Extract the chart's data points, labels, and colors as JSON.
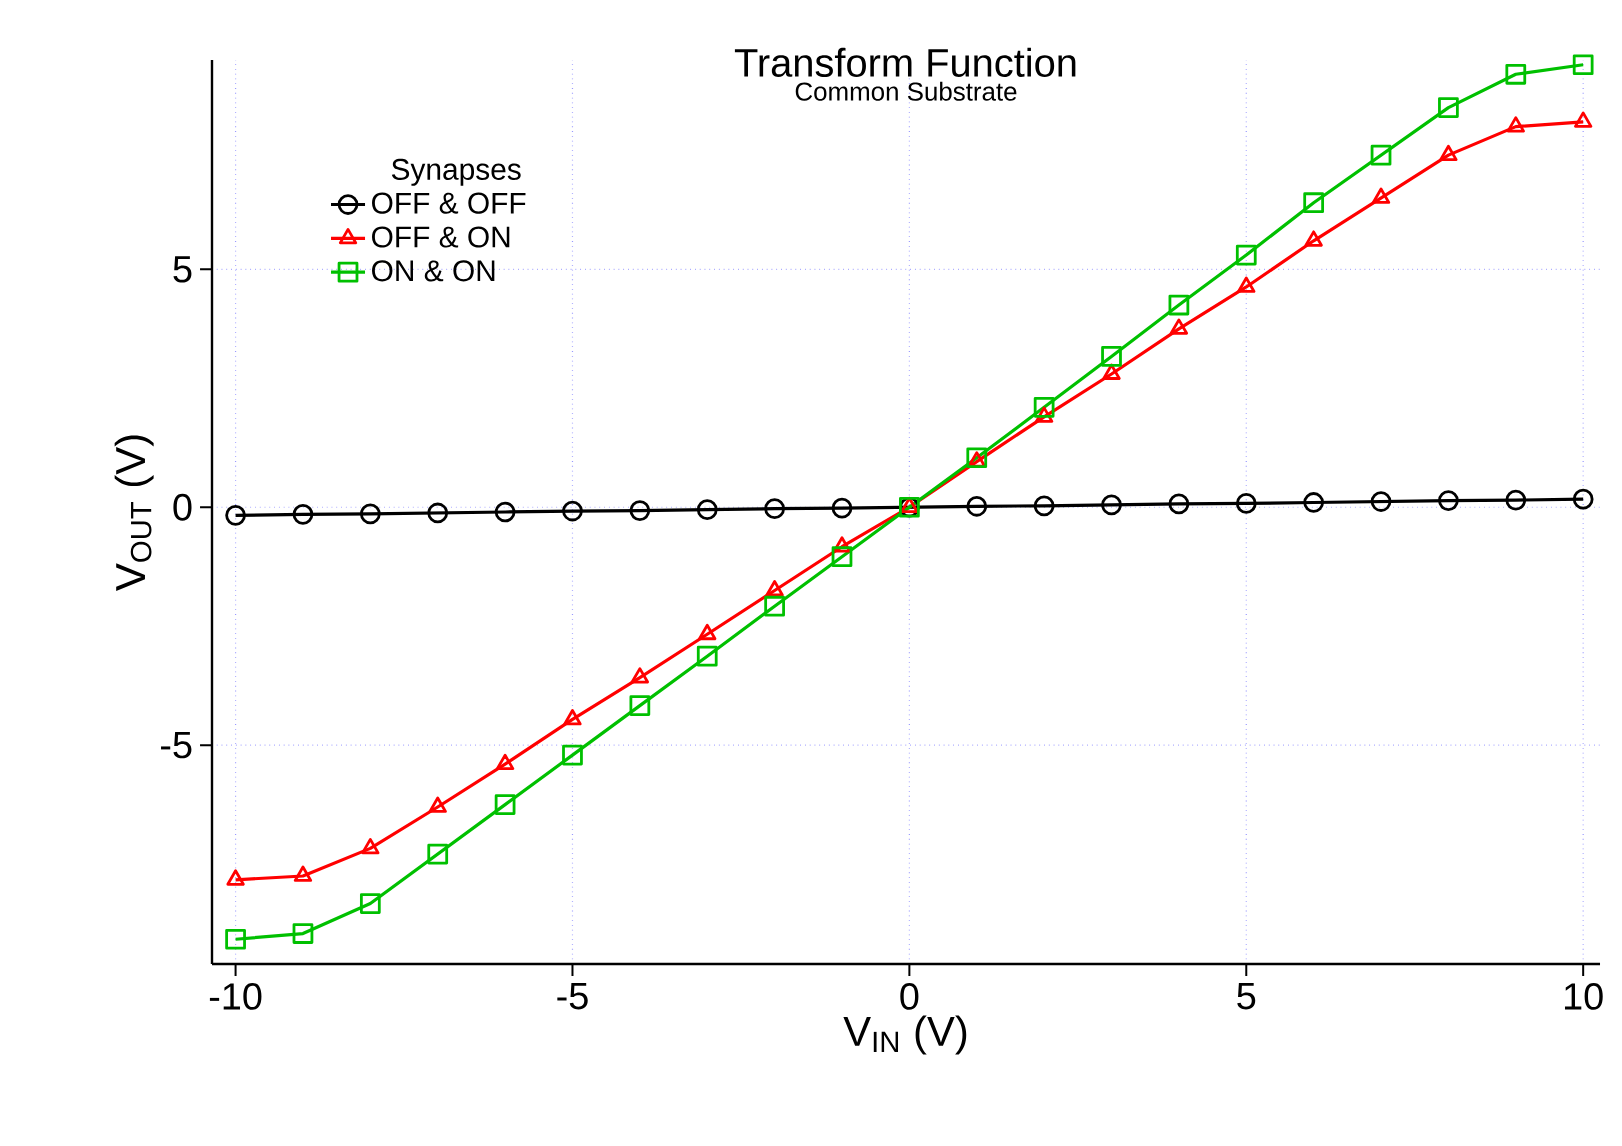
{
  "chart_data": {
    "type": "line",
    "title": "Transform Function",
    "subtitle": "Common Substrate",
    "xlabel": "V$_{IN}$ (V)",
    "ylabel": "V$_{OUT}$ (V)",
    "legend_title": "Synapses",
    "legend": "top left",
    "grid": true,
    "line_style": "solid",
    "x": [
      -10,
      -9,
      -8,
      -7,
      -6,
      -5,
      -4,
      -3,
      -2,
      -1,
      0,
      1,
      2,
      3,
      4,
      5,
      6,
      7,
      8,
      9,
      10
    ],
    "xlim": [
      -10.35,
      10.25
    ],
    "xticks": [
      -10,
      -5,
      0,
      5,
      10
    ],
    "ylim": [
      -9.6,
      9.4
    ],
    "yticks": [
      -5,
      0,
      5
    ],
    "series": [
      {
        "name": "OFF & OFF",
        "color": "#000000",
        "marker": "circle",
        "values": [
          -0.17,
          -0.15,
          -0.14,
          -0.12,
          -0.1,
          -0.08,
          -0.07,
          -0.05,
          -0.03,
          -0.02,
          0,
          0.02,
          0.03,
          0.05,
          0.07,
          0.08,
          0.1,
          0.12,
          0.14,
          0.15,
          0.17
        ]
      },
      {
        "name": "OFF & ON",
        "color": "#ff0000",
        "marker": "triangle",
        "values": [
          -7.83,
          -7.75,
          -7.17,
          -6.3,
          -5.4,
          -4.46,
          -3.58,
          -2.67,
          -1.75,
          -0.83,
          0,
          0.96,
          1.9,
          2.8,
          3.75,
          4.63,
          5.6,
          6.5,
          7.4,
          8.0,
          8.1
        ]
      },
      {
        "name": "ON & ON",
        "color": "#00c000",
        "marker": "square",
        "values": [
          -9.08,
          -8.96,
          -8.33,
          -7.29,
          -6.25,
          -5.21,
          -4.17,
          -3.13,
          -2.08,
          -1.04,
          0,
          1.04,
          2.1,
          3.17,
          4.25,
          5.3,
          6.4,
          7.4,
          8.4,
          9.1,
          9.3
        ]
      }
    ]
  }
}
